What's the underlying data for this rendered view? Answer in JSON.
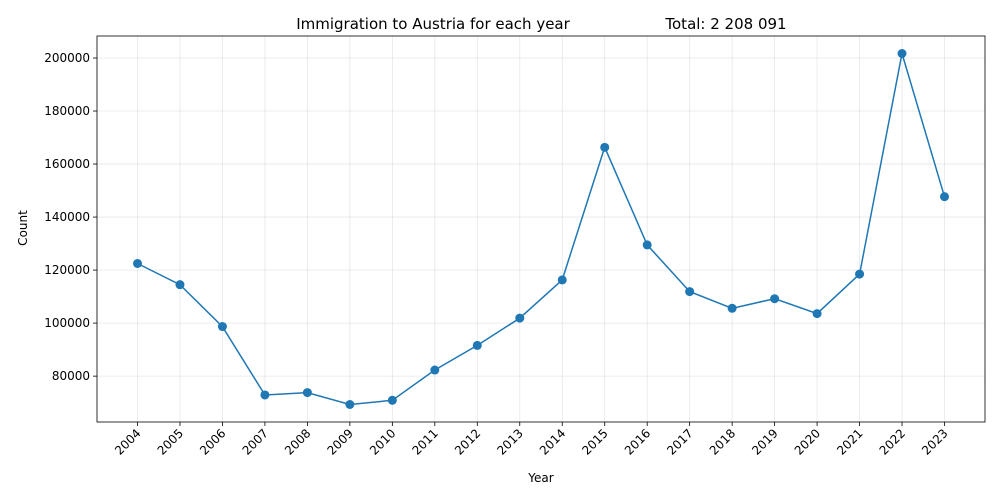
{
  "chart_data": {
    "type": "line",
    "title": "Immigration to Austria for each year",
    "total_label": "Total: 2 208 091",
    "xlabel": "Year",
    "ylabel": "Count",
    "x": [
      "2004",
      "2005",
      "2006",
      "2007",
      "2008",
      "2009",
      "2010",
      "2011",
      "2012",
      "2013",
      "2014",
      "2015",
      "2016",
      "2017",
      "2018",
      "2019",
      "2020",
      "2021",
      "2022",
      "2023"
    ],
    "series": [
      {
        "values": [
          122500,
          114500,
          98700,
          72900,
          73800,
          69300,
          70900,
          82300,
          91600,
          101900,
          116300,
          166300,
          129500,
          111900,
          105600,
          109200,
          103600,
          118500,
          201700,
          147700
        ],
        "color": "#1f77b4",
        "marker": "circle"
      }
    ],
    "yticks": [
      80000,
      100000,
      120000,
      140000,
      160000,
      180000,
      200000
    ],
    "ylim": [
      62700,
      208300
    ],
    "grid": true
  }
}
